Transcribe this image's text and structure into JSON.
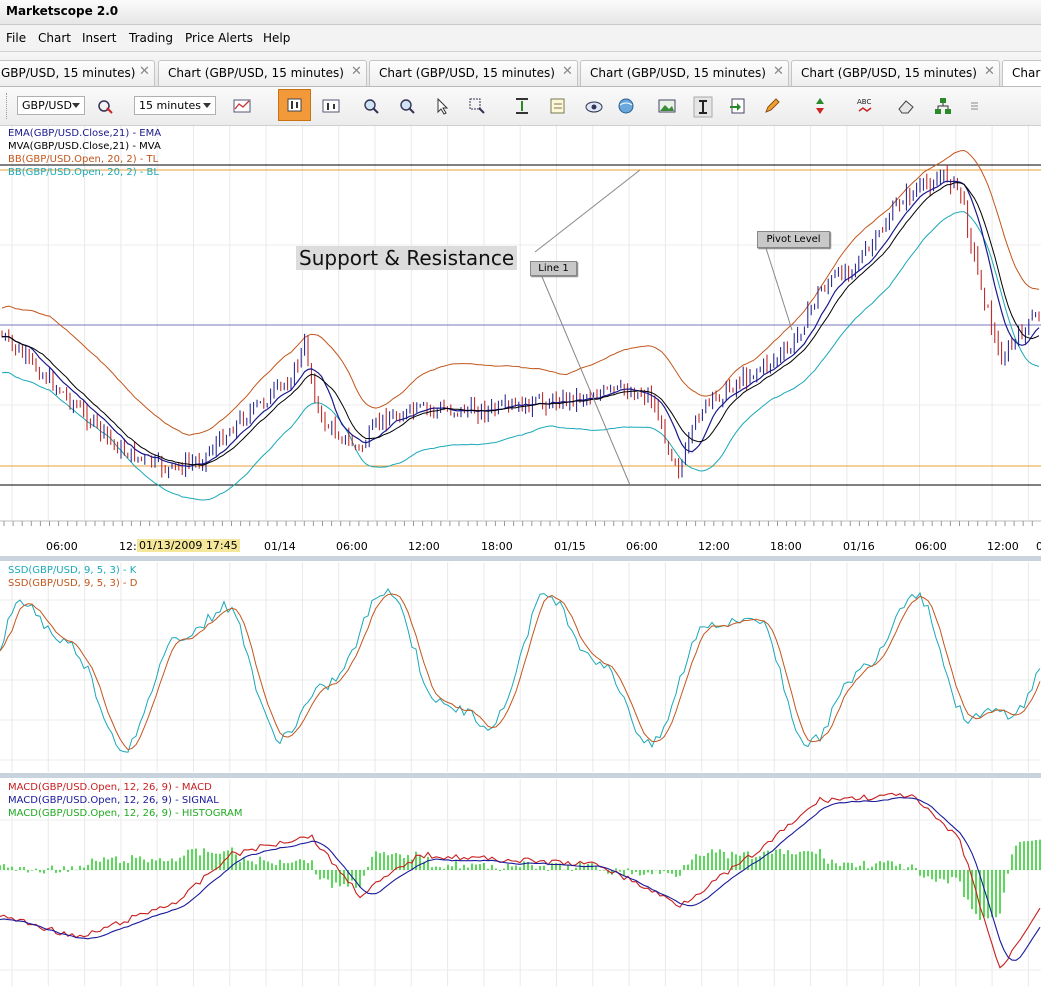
{
  "app": {
    "title": "Marketscope 2.0"
  },
  "menu": [
    "File",
    "Chart",
    "Insert",
    "Trading",
    "Price Alerts",
    "Help"
  ],
  "tabs": [
    {
      "label": "GBP/USD, 15 minutes)"
    },
    {
      "label": "Chart (GBP/USD, 15 minutes)"
    },
    {
      "label": "Chart (GBP/USD, 15 minutes)"
    },
    {
      "label": "Chart (GBP/USD, 15 minutes)"
    },
    {
      "label": "Chart (GBP/USD, 15 minutes)"
    },
    {
      "label": "Char"
    }
  ],
  "toolbar": {
    "instrument": "GBP/USD",
    "timeframe": "15 minutes"
  },
  "price_panel": {
    "legend": [
      {
        "text": "EMA(GBP/USD.Close,21) - EMA",
        "color": "#1a1a8c"
      },
      {
        "text": "MVA(GBP/USD.Close,21) - MVA",
        "color": "#000000"
      },
      {
        "text": "BB(GBP/USD.Open, 20, 2) - TL",
        "color": "#c2561c"
      },
      {
        "text": "BB(GBP/USD.Open, 20, 2) - BL",
        "color": "#1aa8b8"
      }
    ],
    "annotation": "Support & Resistance",
    "line_label": "Line 1",
    "pivot_label": "Pivot Level"
  },
  "time_axis": {
    "labels": [
      "06:00",
      "12:",
      "01/14",
      "06:00",
      "12:00",
      "18:00",
      "01/15",
      "06:00",
      "12:00",
      "18:00",
      "01/16",
      "06:00",
      "12:00",
      "0"
    ],
    "cursor_label": "01/13/2009 17:45"
  },
  "stoch_panel": {
    "legend": [
      {
        "text": "SSD(GBP/USD, 9, 5, 3) - K",
        "color": "#1aa8b8"
      },
      {
        "text": "SSD(GBP/USD, 9, 5, 3) - D",
        "color": "#c2561c"
      }
    ]
  },
  "macd_panel": {
    "legend": [
      {
        "text": "MACD(GBP/USD.Open, 12, 26, 9) - MACD",
        "color": "#c81e1e"
      },
      {
        "text": "MACD(GBP/USD.Open, 12, 26, 9) - SIGNAL",
        "color": "#1a1a9c"
      },
      {
        "text": "MACD(GBP/USD.Open, 12, 26, 9) - HISTOGRAM",
        "color": "#22cc22"
      }
    ]
  },
  "colors": {
    "candle_up": "#1a1a8c",
    "candle_down": "#b81a1a",
    "support_line": "#e8a23a",
    "toolbar_active": "#f29a3a"
  }
}
